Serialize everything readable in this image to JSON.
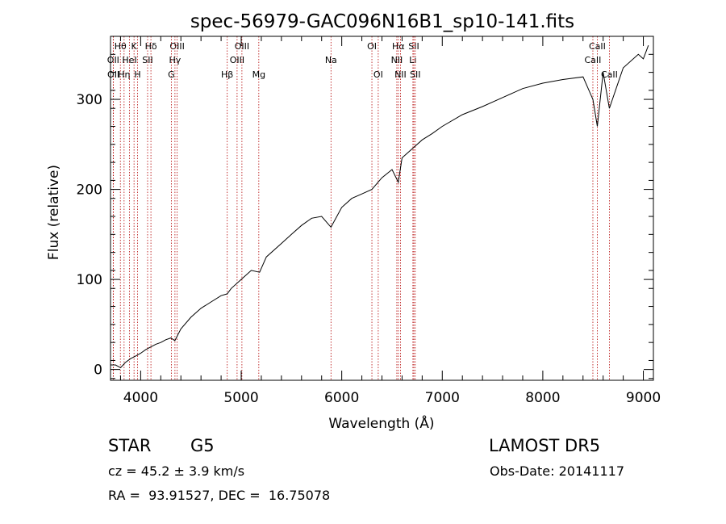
{
  "chart_data": {
    "type": "line",
    "title": "spec-56979-GAC096N16B1_sp10-141.fits",
    "xlabel": "Wavelength (Å)",
    "ylabel": "Flux (relative)",
    "xlim": [
      3700,
      9100
    ],
    "ylim": [
      -12,
      370
    ],
    "x_ticks": [
      4000,
      5000,
      6000,
      7000,
      8000,
      9000
    ],
    "y_ticks": [
      0,
      100,
      200,
      300
    ],
    "grid": false,
    "series": [
      {
        "color": "#000000",
        "x": [
          3700,
          3750,
          3800,
          3850,
          3900,
          3950,
          4000,
          4050,
          4100,
          4150,
          4200,
          4250,
          4300,
          4340,
          4400,
          4500,
          4600,
          4700,
          4800,
          4861,
          4900,
          5000,
          5100,
          5183,
          5250,
          5400,
          5500,
          5600,
          5700,
          5800,
          5893,
          6000,
          6100,
          6200,
          6300,
          6400,
          6500,
          6563,
          6600,
          6700,
          6800,
          6900,
          7000,
          7200,
          7400,
          7600,
          7800,
          8000,
          8200,
          8400,
          8498,
          8542,
          8600,
          8662,
          8800,
          8950,
          9000,
          9050
        ],
        "y": [
          5,
          5,
          2,
          8,
          12,
          15,
          18,
          22,
          25,
          28,
          30,
          33,
          35,
          32,
          45,
          58,
          68,
          75,
          82,
          84,
          90,
          100,
          110,
          108,
          125,
          140,
          150,
          160,
          168,
          170,
          158,
          180,
          190,
          195,
          200,
          213,
          222,
          208,
          235,
          245,
          255,
          262,
          270,
          283,
          292,
          302,
          312,
          318,
          322,
          325,
          300,
          270,
          330,
          290,
          335,
          350,
          345,
          360
        ]
      }
    ],
    "line_markers": [
      {
        "label": "Hθ",
        "x": 3798,
        "row": 1
      },
      {
        "label": "OII",
        "x": 3727,
        "row": 2
      },
      {
        "label": "OII",
        "x": 3729,
        "row": 3
      },
      {
        "label": "Hη",
        "x": 3835,
        "row": 3
      },
      {
        "label": "K",
        "x": 3934,
        "row": 1
      },
      {
        "label": "HeI",
        "x": 3889,
        "row": 2
      },
      {
        "label": "H",
        "x": 3969,
        "row": 3
      },
      {
        "label": "Hδ",
        "x": 4102,
        "row": 1
      },
      {
        "label": "SII",
        "x": 4069,
        "row": 2
      },
      {
        "label": "OIII",
        "x": 4363,
        "row": 1
      },
      {
        "label": "Hγ",
        "x": 4341,
        "row": 2
      },
      {
        "label": "G",
        "x": 4305,
        "row": 3
      },
      {
        "label": "Hβ",
        "x": 4861,
        "row": 3
      },
      {
        "label": "OIII",
        "x": 5007,
        "row": 1
      },
      {
        "label": "OIII",
        "x": 4959,
        "row": 2
      },
      {
        "label": "Mg",
        "x": 5175,
        "row": 3
      },
      {
        "label": "Na",
        "x": 5893,
        "row": 2
      },
      {
        "label": "OI",
        "x": 6300,
        "row": 1
      },
      {
        "label": "OI",
        "x": 6363,
        "row": 3
      },
      {
        "label": "Hα",
        "x": 6563,
        "row": 1
      },
      {
        "label": "NII",
        "x": 6548,
        "row": 2
      },
      {
        "label": "NII",
        "x": 6584,
        "row": 3
      },
      {
        "label": "SII",
        "x": 6717,
        "row": 1
      },
      {
        "label": "Li",
        "x": 6708,
        "row": 2
      },
      {
        "label": "SII",
        "x": 6731,
        "row": 3
      },
      {
        "label": "CaII",
        "x": 8542,
        "row": 1
      },
      {
        "label": "CaII",
        "x": 8498,
        "row": 2
      },
      {
        "label": "CaII",
        "x": 8662,
        "row": 3
      }
    ]
  },
  "info": {
    "object_class": "STAR",
    "subclass": "G5",
    "survey": "LAMOST DR5",
    "redshift": "cz = 45.2 ± 3.9 km/s",
    "obs_date": "Obs-Date: 20141117",
    "coords": "RA =  93.91527, DEC =  16.75078"
  }
}
